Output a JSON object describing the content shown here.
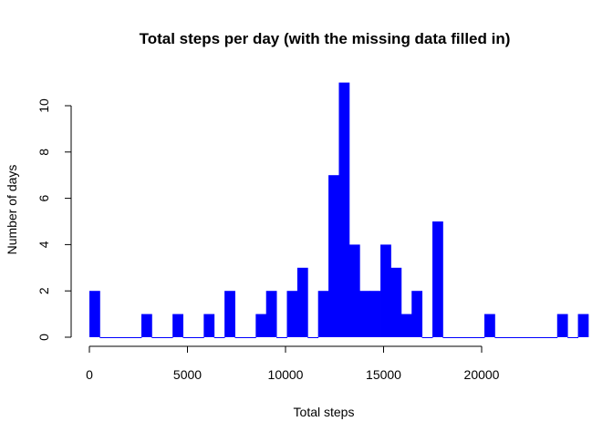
{
  "chart_data": {
    "type": "bar",
    "title": "Total steps per day (with the missing data filled in)",
    "xlabel": "Total steps",
    "ylabel": "Number of days",
    "bin_width": 530,
    "x_start": 0,
    "xlim": [
      0,
      21500
    ],
    "ylim": [
      0,
      11
    ],
    "x_ticks": [
      "0",
      "5000",
      "10000",
      "15000",
      "20000"
    ],
    "y_ticks": [
      "0",
      "2",
      "4",
      "6",
      "8",
      "10"
    ],
    "counts": [
      2,
      0,
      0,
      0,
      0,
      1,
      0,
      0,
      1,
      0,
      0,
      1,
      0,
      2,
      0,
      0,
      1,
      2,
      0,
      2,
      3,
      0,
      2,
      7,
      11,
      4,
      2,
      2,
      4,
      3,
      1,
      2,
      0,
      5,
      0,
      0,
      0,
      0,
      1,
      0,
      0,
      0,
      0,
      0,
      0,
      1,
      0,
      1
    ],
    "bar_color": "#0000ff",
    "grid": false,
    "legend": "none"
  }
}
